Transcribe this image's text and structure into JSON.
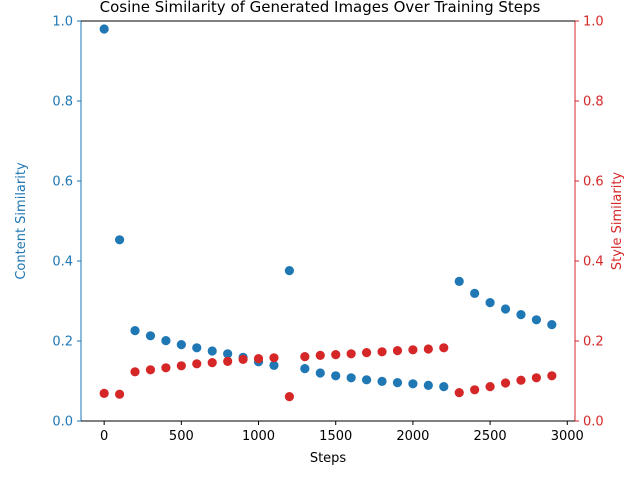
{
  "chart_data": {
    "type": "scatter",
    "title": "Cosine Similarity of Generated Images Over Training Steps",
    "xlabel": "Steps",
    "ylabel": "Content Similarity",
    "ylabel_right": "Style Similarity",
    "xlim": [
      -150,
      3050
    ],
    "ylim": [
      0,
      1
    ],
    "ylim_right": [
      0,
      1
    ],
    "xticks": [
      0,
      500,
      1000,
      1500,
      2000,
      2500,
      3000
    ],
    "yticks": [
      0.0,
      0.2,
      0.4,
      0.6,
      0.8,
      1.0
    ],
    "yticks_right": [
      0.0,
      0.2,
      0.4,
      0.6,
      0.8,
      1.0
    ],
    "grid": false,
    "x": [
      0,
      100,
      200,
      300,
      400,
      500,
      600,
      700,
      800,
      900,
      1000,
      1100,
      1200,
      1300,
      1400,
      1500,
      1600,
      1700,
      1800,
      1900,
      2000,
      2100,
      2200,
      2300,
      2400,
      2500,
      2600,
      2700,
      2800,
      2900
    ],
    "series": [
      {
        "name": "Content Similarity",
        "axis": "left",
        "color": "#1f77b4",
        "values": [
          0.98,
          0.453,
          0.226,
          0.213,
          0.201,
          0.191,
          0.183,
          0.175,
          0.168,
          0.159,
          0.148,
          0.139,
          0.376,
          0.131,
          0.12,
          0.113,
          0.108,
          0.103,
          0.099,
          0.096,
          0.093,
          0.089,
          0.086,
          0.349,
          0.319,
          0.296,
          0.28,
          0.266,
          0.253,
          0.241
        ]
      },
      {
        "name": "Style Similarity",
        "axis": "right",
        "color": "#d62728",
        "values": [
          0.069,
          0.067,
          0.123,
          0.128,
          0.133,
          0.138,
          0.143,
          0.146,
          0.149,
          0.154,
          0.156,
          0.158,
          0.061,
          0.161,
          0.164,
          0.166,
          0.168,
          0.171,
          0.173,
          0.176,
          0.178,
          0.18,
          0.183,
          0.071,
          0.078,
          0.086,
          0.095,
          0.102,
          0.108,
          0.113
        ]
      }
    ]
  }
}
